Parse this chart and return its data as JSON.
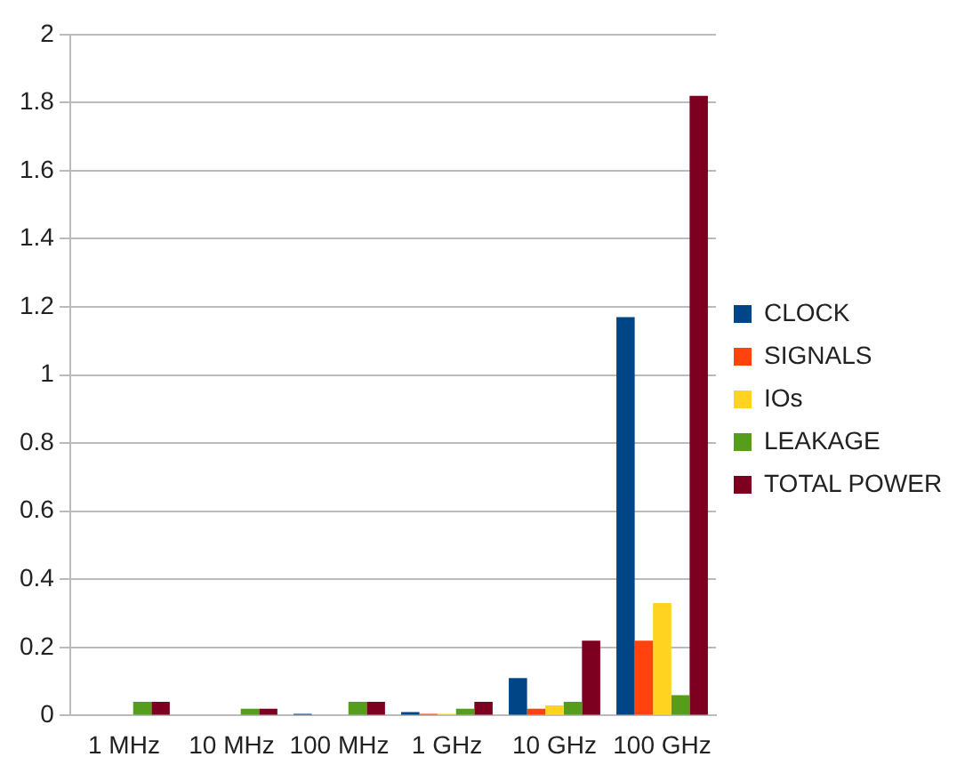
{
  "chart_data": {
    "type": "bar",
    "categories": [
      "1 MHz",
      "10 MHz",
      "100 MHz",
      "1 GHz",
      "10 GHz",
      "100 GHz"
    ],
    "series": [
      {
        "name": "CLOCK",
        "color": "#004586",
        "values": [
          0,
          0,
          0.005,
          0.01,
          0.11,
          1.17
        ]
      },
      {
        "name": "SIGNALS",
        "color": "#ff420e",
        "values": [
          0,
          0,
          0,
          0.005,
          0.02,
          0.22
        ]
      },
      {
        "name": "IOs",
        "color": "#ffd320",
        "values": [
          0,
          0,
          0,
          0.005,
          0.03,
          0.33
        ]
      },
      {
        "name": "LEAKAGE",
        "color": "#579d1c",
        "values": [
          0.04,
          0.02,
          0.04,
          0.02,
          0.04,
          0.06
        ]
      },
      {
        "name": "TOTAL POWER",
        "color": "#7e0021",
        "values": [
          0.04,
          0.02,
          0.04,
          0.04,
          0.22,
          1.82
        ]
      }
    ],
    "ylim": [
      0,
      2
    ],
    "yticks": [
      0,
      0.2,
      0.4,
      0.6,
      0.8,
      1,
      1.2,
      1.4,
      1.6,
      1.8,
      2
    ],
    "grid": "y",
    "legend": "right"
  }
}
